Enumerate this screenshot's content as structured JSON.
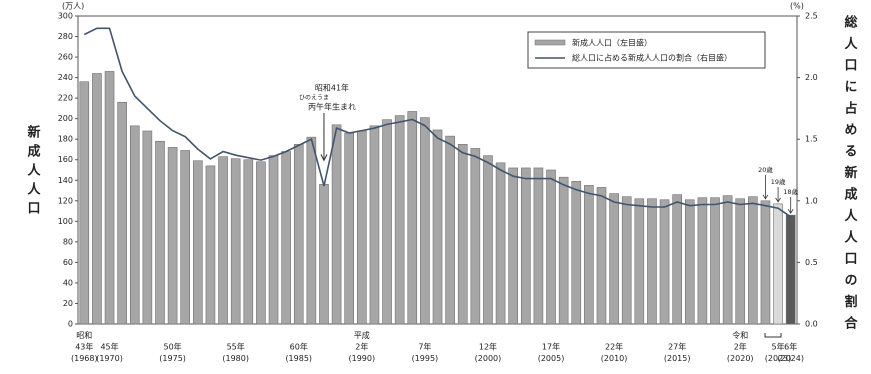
{
  "chart_data": {
    "type": "bar_line",
    "y_unit": "(万人)",
    "y2_unit": "(%)",
    "y_title": "新成人人口",
    "y2_title": "総人口に占める新成人人口の割合",
    "categories": [
      "昭和\n43年\n(1968)",
      null,
      "45年\n(1970)",
      null,
      null,
      null,
      null,
      "50年\n(1975)",
      null,
      null,
      null,
      null,
      "55年\n(1980)",
      null,
      null,
      null,
      null,
      "60年\n(1985)",
      null,
      null,
      null,
      null,
      "平成\n2年\n(1990)",
      null,
      null,
      null,
      null,
      "7年\n(1995)",
      null,
      null,
      null,
      null,
      "12年\n(2000)",
      null,
      null,
      null,
      null,
      "17年\n(2005)",
      null,
      null,
      null,
      null,
      "22年\n(2010)",
      null,
      null,
      null,
      null,
      "27年\n(2015)",
      null,
      null,
      null,
      null,
      "令和\n2年\n(2020)",
      null,
      null,
      "5年\n(2023)",
      "6年\n(2024)"
    ],
    "series": [
      {
        "name": "新成人人口（左目盛）",
        "color": "#a6a6a6",
        "colors": [
          "#a6a6a6",
          "#a6a6a6",
          "#a6a6a6",
          "#a6a6a6",
          "#a6a6a6",
          "#a6a6a6",
          "#a6a6a6",
          "#a6a6a6",
          "#a6a6a6",
          "#a6a6a6",
          "#a6a6a6",
          "#a6a6a6",
          "#a6a6a6",
          "#a6a6a6",
          "#a6a6a6",
          "#a6a6a6",
          "#a6a6a6",
          "#a6a6a6",
          "#a6a6a6",
          "#a6a6a6",
          "#a6a6a6",
          "#a6a6a6",
          "#a6a6a6",
          "#a6a6a6",
          "#a6a6a6",
          "#a6a6a6",
          "#a6a6a6",
          "#a6a6a6",
          "#a6a6a6",
          "#a6a6a6",
          "#a6a6a6",
          "#a6a6a6",
          "#a6a6a6",
          "#a6a6a6",
          "#a6a6a6",
          "#a6a6a6",
          "#a6a6a6",
          "#a6a6a6",
          "#a6a6a6",
          "#a6a6a6",
          "#a6a6a6",
          "#a6a6a6",
          "#a6a6a6",
          "#a6a6a6",
          "#a6a6a6",
          "#a6a6a6",
          "#a6a6a6",
          "#a6a6a6",
          "#a6a6a6",
          "#a6a6a6",
          "#a6a6a6",
          "#a6a6a6",
          "#a6a6a6",
          "#a6a6a6",
          "#a6a6a6",
          "#d9d9d9",
          "#595959"
        ],
        "values": [
          236,
          244,
          246,
          216,
          193,
          188,
          178,
          172,
          169,
          159,
          154,
          163,
          161,
          160,
          158,
          164,
          168,
          175,
          182,
          136,
          194,
          186,
          188,
          193,
          199,
          203,
          207,
          201,
          189,
          183,
          175,
          171,
          164,
          157,
          152,
          152,
          152,
          150,
          143,
          139,
          135,
          133,
          127,
          124,
          122,
          122,
          121,
          126,
          121,
          123,
          123,
          125,
          122,
          124,
          120,
          117,
          106
        ]
      },
      {
        "name": "総人口に占める新成人人口の割合（右目盛）",
        "color": "#44546a",
        "axis": "y2",
        "values": [
          2.35,
          2.4,
          2.4,
          2.05,
          1.85,
          1.75,
          1.65,
          1.57,
          1.52,
          1.42,
          1.34,
          1.4,
          1.37,
          1.35,
          1.33,
          1.36,
          1.4,
          1.45,
          1.5,
          1.12,
          1.59,
          1.55,
          1.57,
          1.59,
          1.62,
          1.64,
          1.66,
          1.61,
          1.51,
          1.46,
          1.39,
          1.36,
          1.31,
          1.25,
          1.2,
          1.18,
          1.18,
          1.18,
          1.13,
          1.09,
          1.06,
          1.04,
          0.99,
          0.97,
          0.96,
          0.95,
          0.95,
          0.99,
          0.96,
          0.97,
          0.97,
          0.99,
          0.97,
          0.98,
          0.96,
          0.94,
          0.87
        ]
      }
    ],
    "ylim": [
      0,
      300
    ],
    "yticks": [
      0,
      20,
      40,
      60,
      80,
      100,
      120,
      140,
      160,
      180,
      200,
      220,
      240,
      260,
      280,
      300
    ],
    "y2lim": [
      0,
      2.5
    ],
    "y2ticks": [
      {
        "value": 0,
        "label": "0.0"
      },
      0.5,
      {
        "value": 1,
        "label": "1.0"
      },
      1.5,
      {
        "value": 2,
        "label": "2.0"
      },
      2.5
    ],
    "annotations": [
      "昭和41年",
      "ひのえうま",
      "丙午年生まれ",
      "20歳",
      "19歳",
      "18歳"
    ]
  }
}
